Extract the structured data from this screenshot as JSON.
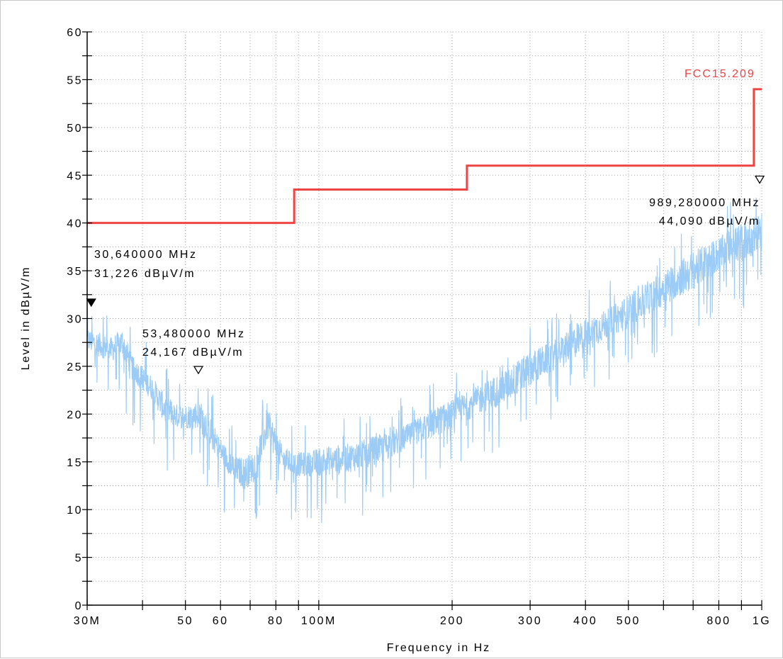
{
  "chart_data": {
    "type": "line",
    "xlabel": "Frequency in Hz",
    "ylabel": "Level in dBµV/m",
    "x_scale": "log",
    "xlim": [
      30000000,
      1000000000
    ],
    "ylim": [
      0,
      60
    ],
    "grid": true,
    "x_tick_labels": [
      {
        "value": 30000000,
        "label": "30M"
      },
      {
        "value": 50000000,
        "label": "50"
      },
      {
        "value": 60000000,
        "label": "60"
      },
      {
        "value": 80000000,
        "label": "80"
      },
      {
        "value": 100000000,
        "label": "100M"
      },
      {
        "value": 200000000,
        "label": "200"
      },
      {
        "value": 300000000,
        "label": "300"
      },
      {
        "value": 400000000,
        "label": "400"
      },
      {
        "value": 500000000,
        "label": "500"
      },
      {
        "value": 800000000,
        "label": "800"
      },
      {
        "value": 1000000000,
        "label": "1G"
      }
    ],
    "y_tick_labels": [
      {
        "value": 0,
        "label": "0"
      },
      {
        "value": 5,
        "label": "5"
      },
      {
        "value": 10,
        "label": "10"
      },
      {
        "value": 15,
        "label": "15"
      },
      {
        "value": 20,
        "label": "20"
      },
      {
        "value": 25,
        "label": "25"
      },
      {
        "value": 30,
        "label": "30"
      },
      {
        "value": 35,
        "label": "35"
      },
      {
        "value": 40,
        "label": "40"
      },
      {
        "value": 45,
        "label": "45"
      },
      {
        "value": 50,
        "label": "50"
      },
      {
        "value": 55,
        "label": "55"
      },
      {
        "value": 60,
        "label": "60"
      }
    ],
    "limit_line": {
      "name": "FCC15.209",
      "color": "#ef4444",
      "points": [
        [
          30000000,
          40.0
        ],
        [
          88000000,
          40.0
        ],
        [
          88000000,
          43.5
        ],
        [
          216000000,
          43.5
        ],
        [
          216000000,
          46.0
        ],
        [
          960000000,
          46.0
        ],
        [
          960000000,
          54.0
        ],
        [
          1000000000,
          54.0
        ]
      ]
    },
    "measurement_color": "#9ccbf5",
    "measurement_envelope": [
      [
        30000000,
        26.5,
        29.0
      ],
      [
        32000000,
        26.0,
        28.5
      ],
      [
        34000000,
        25.5,
        28.0
      ],
      [
        36000000,
        26.0,
        29.0
      ],
      [
        38000000,
        23.5,
        26.0
      ],
      [
        40000000,
        22.5,
        25.0
      ],
      [
        42000000,
        21.5,
        24.0
      ],
      [
        45000000,
        19.0,
        22.0
      ],
      [
        48000000,
        18.5,
        21.0
      ],
      [
        51000000,
        18.5,
        21.0
      ],
      [
        53500000,
        18.5,
        21.5
      ],
      [
        56000000,
        17.0,
        20.5
      ],
      [
        59000000,
        15.5,
        18.0
      ],
      [
        62000000,
        14.0,
        16.5
      ],
      [
        65000000,
        13.0,
        15.5
      ],
      [
        68000000,
        12.0,
        15.5
      ],
      [
        71000000,
        13.0,
        16.0
      ],
      [
        74000000,
        15.0,
        18.0
      ],
      [
        77000000,
        17.5,
        20.5
      ],
      [
        80000000,
        15.0,
        18.5
      ],
      [
        83000000,
        14.0,
        16.5
      ],
      [
        88000000,
        13.5,
        16.0
      ],
      [
        95000000,
        13.5,
        16.0
      ],
      [
        100000000,
        13.5,
        16.5
      ],
      [
        120000000,
        14.0,
        17.0
      ],
      [
        140000000,
        15.0,
        18.0
      ],
      [
        160000000,
        16.5,
        19.0
      ],
      [
        180000000,
        17.5,
        20.5
      ],
      [
        200000000,
        18.5,
        21.5
      ],
      [
        230000000,
        20.0,
        23.0
      ],
      [
        260000000,
        21.0,
        24.5
      ],
      [
        300000000,
        23.0,
        26.5
      ],
      [
        350000000,
        25.0,
        28.0
      ],
      [
        400000000,
        26.5,
        30.0
      ],
      [
        450000000,
        28.0,
        31.0
      ],
      [
        500000000,
        29.0,
        32.5
      ],
      [
        600000000,
        31.5,
        35.0
      ],
      [
        700000000,
        33.0,
        37.0
      ],
      [
        800000000,
        35.0,
        38.5
      ],
      [
        900000000,
        36.0,
        40.0
      ],
      [
        1000000000,
        37.0,
        41.0
      ]
    ],
    "markers": [
      {
        "x": 30640000,
        "y": 31.226,
        "freq_label": "30,640000 MHz",
        "level_label": "31,226 dBµV/m",
        "filled": true
      },
      {
        "x": 53480000,
        "y": 24.167,
        "freq_label": "53,480000 MHz",
        "level_label": "24,167 dBµV/m",
        "filled": false
      },
      {
        "x": 989280000,
        "y": 44.09,
        "freq_label": "989,280000 MHz",
        "level_label": "44,090 dBµV/m",
        "filled": false
      }
    ]
  }
}
